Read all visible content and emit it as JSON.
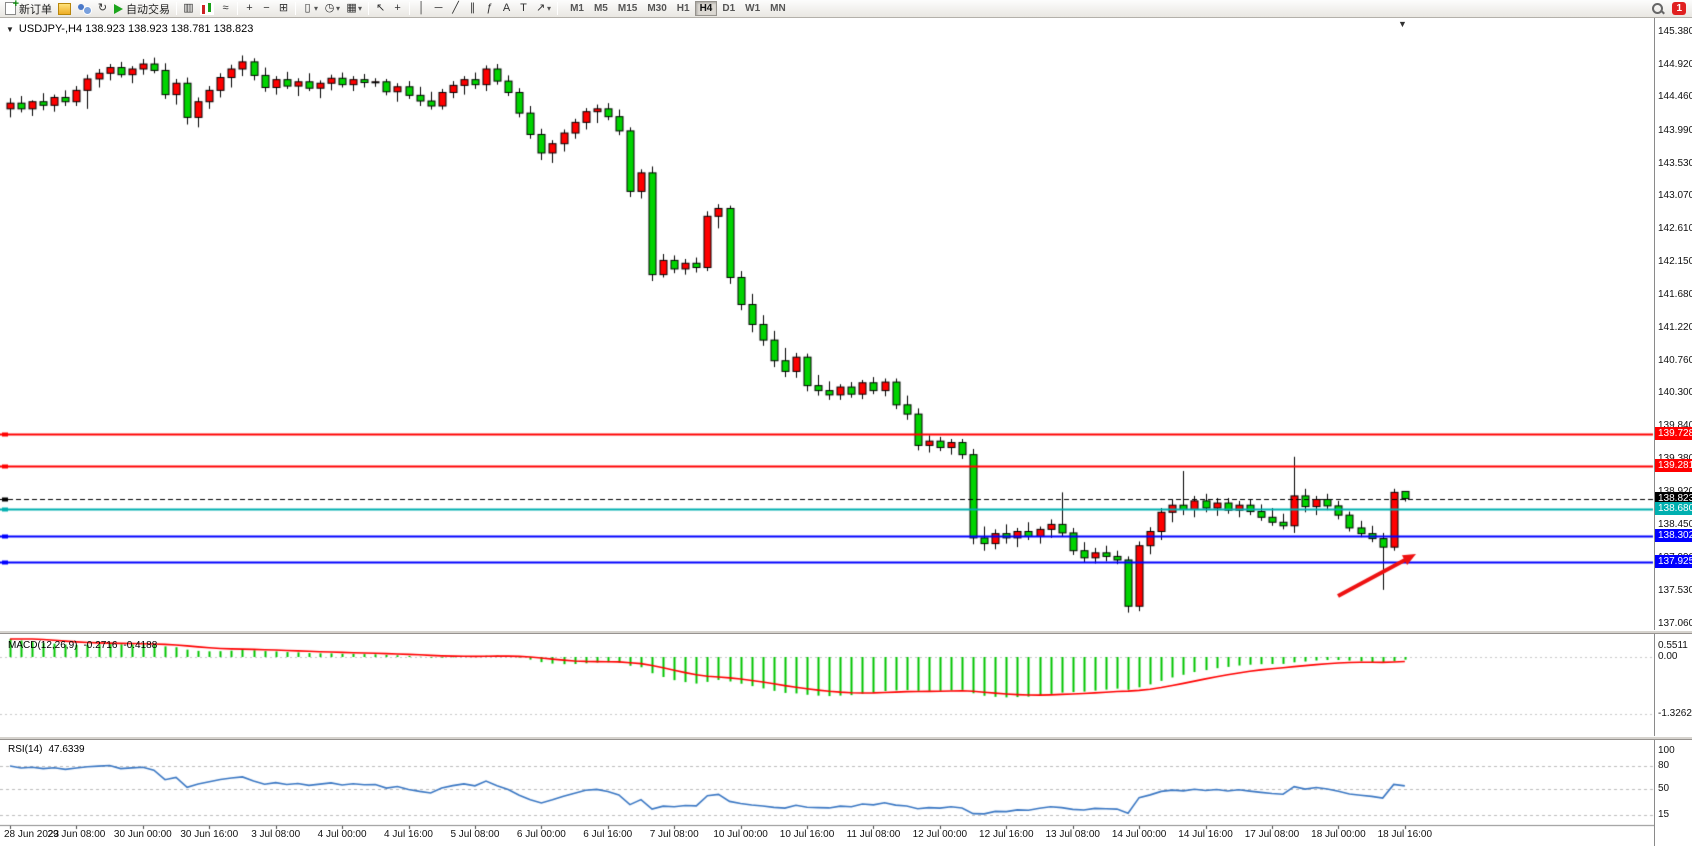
{
  "toolbar": {
    "new_order": {
      "label": "新订单"
    },
    "autotrade": {
      "label": "自动交易"
    },
    "timeframes": [
      "M1",
      "M5",
      "M15",
      "M30",
      "H1",
      "H4",
      "D1",
      "W1",
      "MN"
    ],
    "active_timeframe": "H4",
    "badge_count": "1"
  },
  "window": {
    "symbol_info": "USDJPY-,H4 138.923 138.923 138.781 138.823"
  },
  "icons": {
    "collapse": "▼",
    "shift": "▼",
    "caret": "▾",
    "refresh": "↻",
    "bars": "▥",
    "line_chart": "≈",
    "zoom_in": "+",
    "zoom_out": "−",
    "tile": "⊞",
    "new_chart": "▯",
    "clock": "◷",
    "template": "▦",
    "cursor": "↖",
    "crosshair": "+",
    "vline": "│",
    "hline": "─",
    "trend": "╱",
    "channel": "∥",
    "fibo": "ƒ",
    "text": "A",
    "label": "T",
    "arrow": "↗"
  },
  "chart_data": {
    "type": "candlestick",
    "symbol": "USDJPY-",
    "timeframe": "H4",
    "last_ohlc": {
      "open": 138.923,
      "high": 138.923,
      "low": 138.781,
      "close": 138.823
    },
    "y_range": [
      137.06,
      145.38
    ],
    "up_color": "#ff0000",
    "down_color": "#00d400",
    "outline_color": "#000000",
    "price_axis_ticks": [
      "145.380",
      "144.920",
      "144.460",
      "143.990",
      "143.530",
      "143.070",
      "142.610",
      "142.150",
      "141.680",
      "141.220",
      "140.760",
      "140.300",
      "139.840",
      "139.380",
      "138.920",
      "138.450",
      "137.990",
      "137.530",
      "137.060"
    ],
    "time_labels": [
      "28 Jun 2023",
      "29 Jun 08:00",
      "30 Jun 00:00",
      "30 Jun 16:00",
      "3 Jul 08:00",
      "4 Jul 00:00",
      "4 Jul 16:00",
      "5 Jul 08:00",
      "6 Jul 00:00",
      "6 Jul 16:00",
      "7 Jul 08:00",
      "10 Jul 00:00",
      "10 Jul 16:00",
      "11 Jul 08:00",
      "12 Jul 00:00",
      "12 Jul 16:00",
      "13 Jul 08:00",
      "14 Jul 00:00",
      "14 Jul 16:00",
      "17 Jul 08:00",
      "18 Jul 00:00",
      "18 Jul 16:00"
    ],
    "levels": [
      {
        "label": "139.728",
        "price": 139.728,
        "color": "#ff0000",
        "width": 2,
        "style": "solid",
        "current": false
      },
      {
        "label": "139.281",
        "price": 139.281,
        "color": "#ff0000",
        "width": 2,
        "style": "solid",
        "current": false
      },
      {
        "label": "138.823",
        "price": 138.823,
        "color": "#000000",
        "width": 1,
        "style": "dash",
        "current": true
      },
      {
        "label": "138.680",
        "price": 138.68,
        "color": "#00b0b0",
        "width": 2,
        "style": "solid",
        "current": false
      },
      {
        "label": "138.302",
        "price": 138.302,
        "color": "#0000ff",
        "width": 2,
        "style": "solid",
        "current": false
      },
      {
        "label": "137.925",
        "price": 137.925,
        "color": "#0000ff",
        "width": 2,
        "style": "solid",
        "current": false
      }
    ],
    "candles": [
      [
        144.3,
        144.45,
        144.18,
        144.38
      ],
      [
        144.38,
        144.48,
        144.25,
        144.3
      ],
      [
        144.3,
        144.42,
        144.2,
        144.4
      ],
      [
        144.4,
        144.52,
        144.28,
        144.35
      ],
      [
        144.35,
        144.5,
        144.26,
        144.46
      ],
      [
        144.46,
        144.56,
        144.34,
        144.4
      ],
      [
        144.4,
        144.62,
        144.34,
        144.56
      ],
      [
        144.56,
        144.78,
        144.3,
        144.72
      ],
      [
        144.72,
        144.86,
        144.6,
        144.8
      ],
      [
        144.8,
        144.93,
        144.7,
        144.88
      ],
      [
        144.88,
        144.96,
        144.74,
        144.78
      ],
      [
        144.78,
        144.9,
        144.66,
        144.86
      ],
      [
        144.86,
        145.0,
        144.78,
        144.93
      ],
      [
        144.93,
        145.02,
        144.8,
        144.84
      ],
      [
        144.84,
        144.94,
        144.44,
        144.5
      ],
      [
        144.5,
        144.72,
        144.36,
        144.66
      ],
      [
        144.66,
        144.74,
        144.08,
        144.18
      ],
      [
        144.18,
        144.46,
        144.04,
        144.4
      ],
      [
        144.4,
        144.62,
        144.3,
        144.56
      ],
      [
        144.56,
        144.8,
        144.46,
        144.74
      ],
      [
        144.74,
        144.92,
        144.6,
        144.86
      ],
      [
        144.86,
        145.05,
        144.76,
        144.96
      ],
      [
        144.96,
        145.01,
        144.7,
        144.77
      ],
      [
        144.77,
        144.88,
        144.54,
        144.6
      ],
      [
        144.6,
        144.76,
        144.5,
        144.71
      ],
      [
        144.71,
        144.82,
        144.58,
        144.62
      ],
      [
        144.62,
        144.73,
        144.48,
        144.68
      ],
      [
        144.68,
        144.8,
        144.55,
        144.59
      ],
      [
        144.59,
        144.7,
        144.45,
        144.66
      ],
      [
        144.66,
        144.78,
        144.56,
        144.73
      ],
      [
        144.73,
        144.81,
        144.6,
        144.64
      ],
      [
        144.64,
        144.76,
        144.55,
        144.71
      ],
      [
        144.71,
        144.79,
        144.6,
        144.67
      ],
      [
        144.67,
        144.73,
        144.61,
        144.68
      ],
      [
        144.68,
        144.72,
        144.49,
        144.54
      ],
      [
        144.54,
        144.66,
        144.4,
        144.61
      ],
      [
        144.61,
        144.69,
        144.44,
        144.49
      ],
      [
        144.49,
        144.61,
        144.34,
        144.41
      ],
      [
        144.41,
        144.54,
        144.29,
        144.34
      ],
      [
        144.34,
        144.58,
        144.29,
        144.53
      ],
      [
        144.53,
        144.69,
        144.45,
        144.63
      ],
      [
        144.63,
        144.76,
        144.5,
        144.71
      ],
      [
        144.71,
        144.81,
        144.58,
        144.64
      ],
      [
        144.64,
        144.91,
        144.55,
        144.86
      ],
      [
        144.86,
        144.93,
        144.64,
        144.69
      ],
      [
        144.69,
        144.77,
        144.48,
        144.53
      ],
      [
        144.53,
        144.59,
        144.18,
        144.24
      ],
      [
        144.24,
        144.34,
        143.88,
        143.94
      ],
      [
        143.94,
        144.02,
        143.58,
        143.68
      ],
      [
        143.68,
        143.86,
        143.54,
        143.81
      ],
      [
        143.81,
        144.01,
        143.7,
        143.96
      ],
      [
        143.96,
        144.16,
        143.88,
        144.11
      ],
      [
        144.11,
        144.31,
        144.01,
        144.26
      ],
      [
        144.26,
        144.36,
        144.1,
        144.3
      ],
      [
        144.3,
        144.38,
        144.14,
        144.19
      ],
      [
        144.19,
        144.29,
        143.93,
        143.99
      ],
      [
        143.99,
        144.04,
        143.06,
        143.14
      ],
      [
        143.14,
        143.45,
        143.04,
        143.4
      ],
      [
        143.4,
        143.49,
        141.88,
        141.97
      ],
      [
        141.97,
        142.26,
        141.93,
        142.17
      ],
      [
        142.17,
        142.24,
        141.99,
        142.05
      ],
      [
        142.05,
        142.19,
        141.97,
        142.13
      ],
      [
        142.13,
        142.21,
        142.0,
        142.07
      ],
      [
        142.07,
        142.86,
        142.02,
        142.79
      ],
      [
        142.79,
        142.96,
        142.62,
        142.9
      ],
      [
        142.9,
        142.94,
        141.84,
        141.93
      ],
      [
        141.93,
        142.02,
        141.47,
        141.55
      ],
      [
        141.55,
        141.7,
        141.16,
        141.27
      ],
      [
        141.27,
        141.4,
        140.97,
        141.05
      ],
      [
        141.05,
        141.18,
        140.67,
        140.76
      ],
      [
        140.76,
        140.94,
        140.53,
        140.61
      ],
      [
        140.61,
        140.87,
        140.52,
        140.81
      ],
      [
        140.81,
        140.86,
        140.33,
        140.41
      ],
      [
        140.41,
        140.56,
        140.27,
        140.34
      ],
      [
        140.34,
        140.47,
        140.21,
        140.28
      ],
      [
        140.28,
        140.43,
        140.21,
        140.39
      ],
      [
        140.39,
        140.46,
        140.24,
        140.29
      ],
      [
        140.29,
        140.49,
        140.22,
        140.45
      ],
      [
        140.45,
        140.53,
        140.29,
        140.34
      ],
      [
        140.34,
        140.51,
        140.26,
        140.46
      ],
      [
        140.46,
        140.51,
        140.08,
        140.14
      ],
      [
        140.14,
        140.27,
        139.93,
        140.01
      ],
      [
        140.01,
        140.09,
        139.5,
        139.57
      ],
      [
        139.57,
        139.71,
        139.47,
        139.63
      ],
      [
        139.63,
        139.69,
        139.49,
        139.54
      ],
      [
        139.54,
        139.66,
        139.44,
        139.61
      ],
      [
        139.61,
        139.66,
        139.38,
        139.44
      ],
      [
        139.44,
        139.52,
        138.18,
        138.27
      ],
      [
        138.27,
        138.43,
        138.09,
        138.19
      ],
      [
        138.19,
        138.39,
        138.11,
        138.33
      ],
      [
        138.33,
        138.46,
        138.19,
        138.27
      ],
      [
        138.27,
        138.41,
        138.14,
        138.36
      ],
      [
        138.36,
        138.49,
        138.24,
        138.29
      ],
      [
        138.29,
        138.43,
        138.19,
        138.39
      ],
      [
        138.39,
        138.53,
        138.27,
        138.46
      ],
      [
        138.46,
        138.91,
        138.29,
        138.34
      ],
      [
        138.34,
        138.41,
        138.03,
        138.09
      ],
      [
        138.09,
        138.21,
        137.93,
        137.99
      ],
      [
        137.99,
        138.13,
        137.91,
        138.06
      ],
      [
        138.06,
        138.16,
        137.94,
        138.01
      ],
      [
        138.01,
        138.09,
        137.9,
        137.96
      ],
      [
        137.96,
        138.01,
        137.22,
        137.31
      ],
      [
        137.31,
        138.22,
        137.24,
        138.16
      ],
      [
        138.16,
        138.42,
        138.04,
        138.36
      ],
      [
        138.36,
        138.69,
        138.24,
        138.63
      ],
      [
        138.63,
        138.81,
        138.49,
        138.73
      ],
      [
        138.73,
        139.21,
        138.59,
        138.67
      ],
      [
        138.67,
        138.86,
        138.56,
        138.79
      ],
      [
        138.79,
        138.89,
        138.63,
        138.69
      ],
      [
        138.69,
        138.83,
        138.58,
        138.76
      ],
      [
        138.76,
        138.83,
        138.61,
        138.66
      ],
      [
        138.66,
        138.79,
        138.56,
        138.73
      ],
      [
        138.73,
        138.81,
        138.59,
        138.64
      ],
      [
        138.64,
        138.74,
        138.51,
        138.56
      ],
      [
        138.56,
        138.69,
        138.44,
        138.49
      ],
      [
        138.49,
        138.61,
        138.39,
        138.44
      ],
      [
        138.44,
        139.41,
        138.34,
        138.86
      ],
      [
        138.86,
        138.96,
        138.63,
        138.71
      ],
      [
        138.71,
        138.86,
        138.59,
        138.81
      ],
      [
        138.81,
        138.89,
        138.66,
        138.72
      ],
      [
        138.72,
        138.79,
        138.53,
        138.59
      ],
      [
        138.59,
        138.64,
        138.36,
        138.41
      ],
      [
        138.41,
        138.51,
        138.28,
        138.33
      ],
      [
        138.33,
        138.44,
        138.21,
        138.26
      ],
      [
        138.26,
        138.34,
        137.54,
        138.14
      ],
      [
        138.14,
        138.96,
        138.09,
        138.91
      ],
      [
        138.923,
        138.923,
        138.781,
        138.823
      ]
    ],
    "indicators": {
      "macd": {
        "name": "MACD(12,26,9)",
        "main_value": "-0.2716",
        "signal_value": "-0.4188",
        "scale_labels": [
          "0.5511",
          "0.00",
          "-1.3262"
        ],
        "histogram_color": "#00c400",
        "signal_color": "#ff0000"
      },
      "rsi": {
        "name": "RSI(14)",
        "value": "47.6339",
        "scale_labels": [
          "100",
          "80",
          "50",
          "15"
        ],
        "level_lines": [
          80,
          50,
          15
        ],
        "line_color": "#3b78c4"
      }
    },
    "annotation_arrow": {
      "from": [
        1338,
        578
      ],
      "to": [
        1416,
        536
      ],
      "color": "#ee1111"
    }
  }
}
